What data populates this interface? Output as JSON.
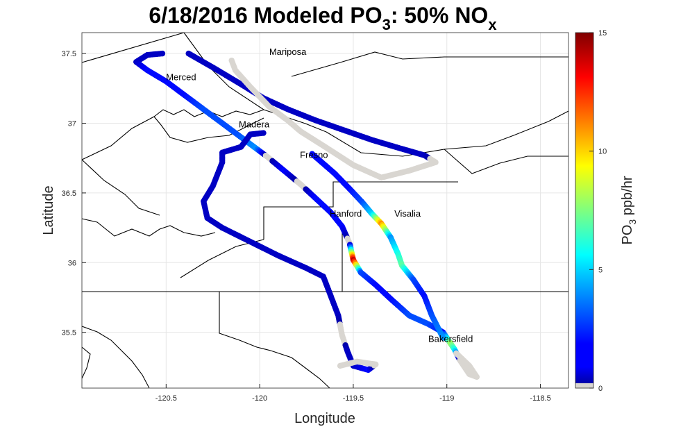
{
  "chart_data": {
    "type": "scatter",
    "title": "6/18/2016 Modeled PO3: 50% NOx",
    "title_parts": {
      "a": "6/18/2016 Modeled PO",
      "sub1": "3",
      "b": ": 50% NO",
      "sub2": "x"
    },
    "xlabel": "Longitude",
    "ylabel": "Latitude",
    "xlim": [
      -120.95,
      -118.35
    ],
    "ylim": [
      35.1,
      37.65
    ],
    "xticks": [
      -120.5,
      -120,
      -119.5,
      -119,
      -118.5
    ],
    "xtick_labels": [
      "-120.5",
      "-120",
      "-119.5",
      "-119",
      "-118.5"
    ],
    "yticks": [
      35.5,
      36,
      36.5,
      37,
      37.5
    ],
    "ytick_labels": [
      "35.5",
      "36",
      "36.5",
      "37",
      "37.5"
    ],
    "grid": true,
    "colorbar": {
      "label_main": "PO",
      "label_sub": "3",
      "label_rest": " ppb/hr",
      "clim": [
        0,
        15
      ],
      "ticks": [
        0,
        5,
        10,
        15
      ],
      "tick_labels": [
        "0",
        "5",
        "10",
        "15"
      ],
      "colormap": "jet",
      "zero_color": "#d9d6d1"
    },
    "county_labels": [
      {
        "name": "Mariposa",
        "lon": -119.85,
        "lat": 37.49
      },
      {
        "name": "Merced",
        "lon": -120.42,
        "lat": 37.31
      },
      {
        "name": "Madera",
        "lon": -120.03,
        "lat": 36.97
      },
      {
        "name": "Fresno",
        "lon": -119.71,
        "lat": 36.75
      },
      {
        "name": "Hanford",
        "lon": -119.54,
        "lat": 36.33
      },
      {
        "name": "Visalia",
        "lon": -119.21,
        "lat": 36.33
      },
      {
        "name": "Bakersfield",
        "lon": -118.98,
        "lat": 35.43
      }
    ],
    "series": [
      {
        "points": [
          [
            -120.52,
            37.5,
            1
          ],
          [
            -120.6,
            37.49,
            1
          ],
          [
            -120.66,
            37.44,
            1
          ],
          [
            -120.6,
            37.38,
            2
          ],
          [
            -120.5,
            37.3,
            2
          ],
          [
            -120.4,
            37.2,
            2
          ],
          [
            -120.3,
            37.1,
            3
          ],
          [
            -120.22,
            37.02,
            3
          ],
          [
            -120.12,
            36.92,
            3
          ],
          [
            -120.02,
            36.82,
            4
          ],
          [
            -119.96,
            36.76,
            0
          ],
          [
            -119.87,
            36.66,
            2
          ],
          [
            -119.78,
            36.56,
            0
          ],
          [
            -119.7,
            36.46,
            2
          ],
          [
            -119.62,
            36.36,
            2
          ],
          [
            -119.56,
            36.26,
            2
          ],
          [
            -119.52,
            36.14,
            0
          ],
          [
            -119.5,
            36.02,
            14
          ],
          [
            -119.46,
            35.93,
            3
          ],
          [
            -119.38,
            35.84,
            2
          ],
          [
            -119.3,
            35.74,
            2
          ],
          [
            -119.2,
            35.62,
            3
          ],
          [
            -119.1,
            35.56,
            3
          ],
          [
            -119.02,
            35.5,
            2
          ],
          [
            -118.98,
            35.42,
            8
          ],
          [
            -118.96,
            35.38,
            6
          ],
          [
            -118.93,
            35.3,
            0
          ],
          [
            -118.88,
            35.2,
            0
          ],
          [
            -118.84,
            35.18,
            0
          ],
          [
            -118.88,
            35.26,
            0
          ],
          [
            -118.95,
            35.35,
            0
          ]
        ]
      },
      {
        "points": [
          [
            -120.38,
            37.5,
            1
          ],
          [
            -120.25,
            37.4,
            1
          ],
          [
            -120.1,
            37.28,
            1
          ],
          [
            -119.98,
            37.18,
            1
          ],
          [
            -119.85,
            37.1,
            1
          ],
          [
            -119.7,
            37.02,
            1
          ],
          [
            -119.55,
            36.95,
            1
          ],
          [
            -119.4,
            36.88,
            1
          ],
          [
            -119.25,
            36.82,
            1
          ],
          [
            -119.12,
            36.77,
            1
          ],
          [
            -119.06,
            36.72,
            0
          ],
          [
            -119.2,
            36.66,
            0
          ],
          [
            -119.35,
            36.61,
            0
          ],
          [
            -119.5,
            36.7,
            0
          ],
          [
            -119.65,
            36.83,
            0
          ],
          [
            -119.78,
            36.94,
            0
          ],
          [
            -119.85,
            37.02,
            0
          ],
          [
            -119.95,
            37.12,
            0
          ],
          [
            -120.05,
            37.26,
            0
          ],
          [
            -120.13,
            37.38,
            0
          ],
          [
            -120.15,
            37.45,
            0
          ]
        ]
      },
      {
        "points": [
          [
            -119.98,
            36.93,
            1
          ],
          [
            -120.05,
            36.92,
            1
          ],
          [
            -120.1,
            36.83,
            1
          ],
          [
            -120.2,
            36.79,
            1
          ],
          [
            -120.2,
            36.72,
            1
          ],
          [
            -120.25,
            36.55,
            1
          ],
          [
            -120.3,
            36.44,
            1
          ],
          [
            -120.28,
            36.32,
            1
          ],
          [
            -120.2,
            36.25,
            1
          ],
          [
            -120.05,
            36.15,
            1
          ],
          [
            -119.9,
            36.05,
            1
          ],
          [
            -119.75,
            35.96,
            1
          ],
          [
            -119.66,
            35.9,
            1
          ],
          [
            -119.62,
            35.76,
            1
          ],
          [
            -119.58,
            35.62,
            1
          ],
          [
            -119.56,
            35.48,
            0
          ],
          [
            -119.53,
            35.36,
            1
          ],
          [
            -119.5,
            35.26,
            1
          ],
          [
            -119.42,
            35.23,
            2
          ],
          [
            -119.38,
            35.27,
            0
          ],
          [
            -119.48,
            35.29,
            0
          ],
          [
            -119.57,
            35.26,
            0
          ]
        ]
      },
      {
        "points": [
          [
            -119.72,
            36.78,
            2
          ],
          [
            -119.6,
            36.64,
            2
          ],
          [
            -119.52,
            36.53,
            2
          ],
          [
            -119.45,
            36.43,
            3
          ],
          [
            -119.4,
            36.35,
            5
          ],
          [
            -119.35,
            36.28,
            11
          ],
          [
            -119.3,
            36.18,
            4
          ],
          [
            -119.26,
            36.06,
            6
          ],
          [
            -119.24,
            35.98,
            7
          ],
          [
            -119.18,
            35.88,
            3
          ],
          [
            -119.12,
            35.76,
            2
          ],
          [
            -119.08,
            35.62,
            3
          ],
          [
            -119.02,
            35.46,
            4
          ]
        ]
      }
    ]
  }
}
